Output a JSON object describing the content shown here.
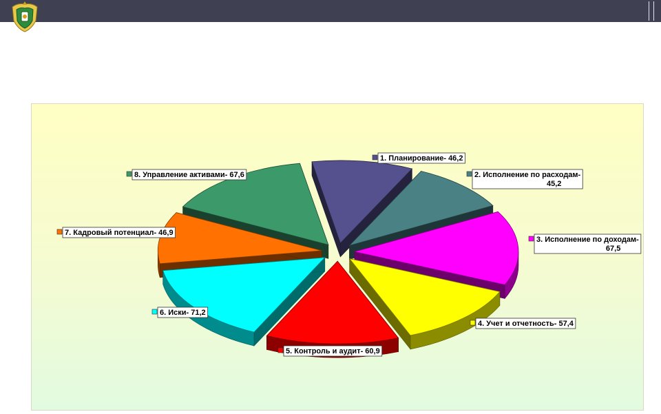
{
  "header": {
    "bar_color": "#3f4153",
    "emblem_icon": "coat-of-arms-emblem-icon"
  },
  "chart_data": {
    "type": "pie",
    "variant": "exploded-3d",
    "title": "",
    "legend": "none",
    "background": "yellow-green-gradient",
    "slices": [
      {
        "label": "1. Планирование- 46,2",
        "value": 46.2,
        "color": "#55518f"
      },
      {
        "label": "2. Исполнение по расходам-",
        "label2": "45,2",
        "value": 45.2,
        "color": "#4a8185"
      },
      {
        "label": "3. Исполнение по доходам-",
        "label2": "67,5",
        "value": 67.5,
        "color": "#ff00ff"
      },
      {
        "label": "4. Учет и отчетность- 57,4",
        "value": 57.4,
        "color": "#ffff00"
      },
      {
        "label": "5. Контроль и аудит- 60,9",
        "value": 60.9,
        "color": "#ff0000"
      },
      {
        "label": "6. Иски- 71,2",
        "value": 71.2,
        "color": "#00ffff"
      },
      {
        "label": "7. Кадровый потенциал- 46,9",
        "value": 46.9,
        "color": "#ff7100"
      },
      {
        "label": "8. Управление активами- 67,6",
        "value": 67.6,
        "color": "#3c9a6a"
      }
    ]
  }
}
